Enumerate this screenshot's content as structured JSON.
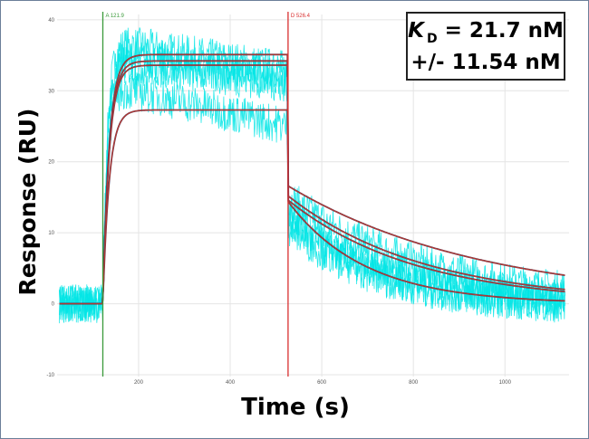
{
  "chart_data": {
    "type": "line",
    "title": "",
    "xlabel": "Time (s)",
    "ylabel": "Response (RU)",
    "xlim": [
      22,
      1140
    ],
    "ylim": [
      -10,
      41
    ],
    "xticks": [
      200,
      400,
      600,
      800,
      1000
    ],
    "yticks": [
      -10,
      0,
      10,
      20,
      30,
      40
    ],
    "grid": true,
    "markers": [
      {
        "label": "A 121.9",
        "x": 121.9,
        "color": "#3a9a3a"
      },
      {
        "label": "D 526.4",
        "x": 526.4,
        "color": "#d93030"
      }
    ],
    "annotation": {
      "k": "K",
      "sub": "D",
      "line1_rest": " = 21.7 nM",
      "line2": "+/- 11.54 nM"
    },
    "observed_color": "#00e5e5",
    "fit_color": "#c0392b",
    "fit_series": [
      {
        "plateau": 35.1,
        "dissoc_start": 16.6,
        "end_value": 4.0
      },
      {
        "plateau": 34.2,
        "dissoc_start": 15.2,
        "end_value": 2.0
      },
      {
        "plateau": 33.6,
        "dissoc_start": 14.6,
        "end_value": 1.7
      },
      {
        "plateau": 27.3,
        "dissoc_start": 14.4,
        "end_value": 0.4
      }
    ],
    "observed_series": [
      {
        "assoc_start": 37,
        "assoc_end": 33,
        "dissoc_start": 15,
        "end_value": 2
      },
      {
        "assoc_start": 35,
        "assoc_end": 32,
        "dissoc_start": 13,
        "end_value": 1
      },
      {
        "assoc_start": 34,
        "assoc_end": 31,
        "dissoc_start": 12,
        "end_value": 0
      },
      {
        "assoc_start": 31,
        "assoc_end": 25,
        "dissoc_start": 11,
        "end_value": 0
      }
    ]
  }
}
